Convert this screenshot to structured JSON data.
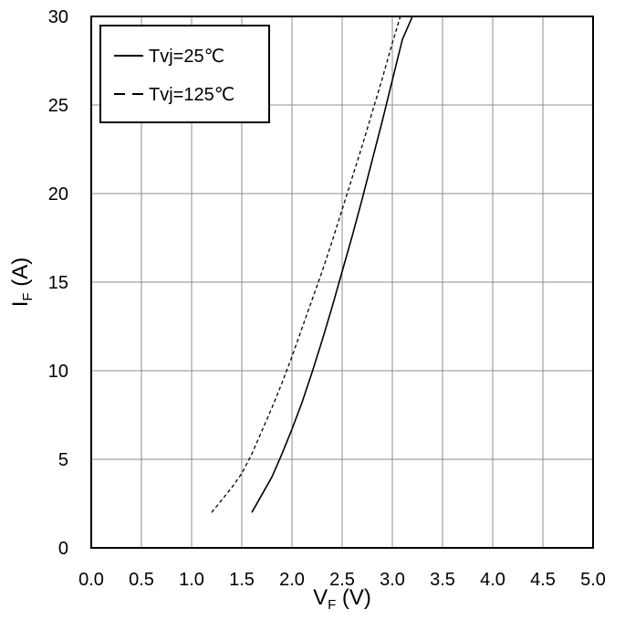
{
  "chart_data": {
    "type": "line",
    "title": "",
    "xlabel": {
      "main": "V",
      "sub": "F",
      "unit": " (V)"
    },
    "ylabel": {
      "main": "I",
      "sub": "F",
      "unit": " (A)"
    },
    "xlim": [
      0,
      5
    ],
    "ylim": [
      0,
      30
    ],
    "x_ticks": [
      "0.0",
      "0.5",
      "1.0",
      "1.5",
      "2.0",
      "2.5",
      "3.0",
      "3.5",
      "4.0",
      "4.5",
      "5.0"
    ],
    "y_ticks": [
      "0",
      "5",
      "10",
      "15",
      "20",
      "25",
      "30"
    ],
    "grid": true,
    "legend_position": "top-left",
    "series": [
      {
        "name": "Tvj=25℃",
        "line_style": "solid",
        "color": "#000000",
        "x": [
          1.6,
          1.7,
          1.8,
          1.9,
          2.0,
          2.1,
          2.2,
          2.3,
          2.4,
          2.5,
          2.6,
          2.7,
          2.8,
          2.9,
          3.0,
          3.1,
          3.2,
          3.3
        ],
        "y": [
          2.0,
          3.0,
          4.0,
          5.3,
          6.7,
          8.2,
          9.9,
          11.7,
          13.6,
          15.6,
          17.6,
          19.7,
          21.9,
          24.1,
          26.4,
          28.7,
          30.0,
          30.0
        ]
      },
      {
        "name": "Tvj=125℃",
        "line_style": "dashed",
        "color": "#000000",
        "x": [
          1.2,
          1.3,
          1.4,
          1.5,
          1.6,
          1.7,
          1.8,
          1.9,
          2.0,
          2.1,
          2.2,
          2.3,
          2.4,
          2.5,
          2.6,
          2.7,
          2.8,
          2.9,
          3.0,
          3.08
        ],
        "y": [
          2.0,
          2.7,
          3.4,
          4.2,
          5.3,
          6.6,
          7.9,
          9.3,
          10.8,
          12.4,
          14.0,
          15.6,
          17.3,
          19.1,
          20.9,
          22.7,
          24.6,
          26.5,
          28.5,
          30.0
        ]
      }
    ]
  }
}
